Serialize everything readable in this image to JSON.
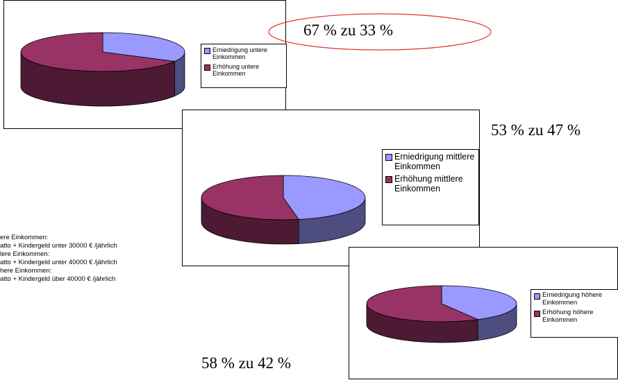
{
  "colors": {
    "lower_side": "#9999FF",
    "lower_side_dark": "#4D4D80",
    "upper_side": "#993366",
    "upper_side_dark": "#4D1A33",
    "ellipse": "#E03030"
  },
  "chart_data": [
    {
      "type": "pie",
      "series": [
        {
          "values": [
            33,
            67
          ]
        }
      ],
      "categories": [
        "Erniedrigung untere Einkommen",
        "Erhöhung untere Einkommen"
      ],
      "legend": "right"
    },
    {
      "type": "pie",
      "series": [
        {
          "values": [
            47,
            53
          ]
        }
      ],
      "categories": [
        "Erniedrigung mittlere Einkommen",
        "Erhöhung mittlere Einkommen"
      ],
      "legend": "right"
    },
    {
      "type": "pie",
      "series": [
        {
          "values": [
            42,
            58
          ]
        }
      ],
      "categories": [
        "Erniedrigung höhere Einkommen",
        "Erhöhung höhere Einkommen"
      ],
      "legend": "right"
    }
  ],
  "labels": {
    "ratio_lower": "67 % zu 33 %",
    "ratio_middle": "53 % zu 47 %",
    "ratio_upper": "58 % zu 42 %"
  },
  "notes": [
    "ere Einkommen:",
    "atto + Kindergeld unter 30000 € /jährlich",
    "lere Einkommen:",
    "atto + Kindergeld unter 40000 € /jährlich",
    "here Einkommen:",
    "atto + Kindergeld über  40000 € /jährlich"
  ]
}
